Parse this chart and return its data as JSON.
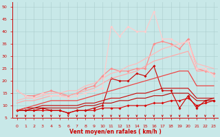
{
  "x": [
    0,
    1,
    2,
    3,
    4,
    5,
    6,
    7,
    8,
    9,
    10,
    11,
    12,
    13,
    14,
    15,
    16,
    17,
    18,
    19,
    20,
    21,
    22,
    23
  ],
  "series": [
    {
      "label": "s1_dark_jagged",
      "color": "#dd0000",
      "lw": 0.8,
      "marker": "D",
      "markersize": 1.8,
      "values": [
        8,
        8,
        8,
        8,
        8,
        8,
        7,
        8,
        8,
        8,
        9,
        9,
        9,
        10,
        10,
        10,
        11,
        11,
        12,
        12,
        13,
        10,
        11,
        12
      ]
    },
    {
      "label": "s2_dark_jagged2",
      "color": "#cc0000",
      "lw": 0.8,
      "marker": "D",
      "markersize": 1.8,
      "values": [
        8,
        8,
        8,
        9,
        8,
        8,
        7,
        8,
        8,
        9,
        10,
        21,
        20,
        20,
        23,
        22,
        26,
        16,
        16,
        9,
        14,
        9,
        12,
        12
      ]
    },
    {
      "label": "s3_dark_linear",
      "color": "#bb0000",
      "lw": 0.8,
      "marker": null,
      "markersize": 0,
      "values": [
        8,
        8,
        9,
        9,
        9,
        9,
        9,
        9,
        10,
        10,
        11,
        11,
        12,
        12,
        13,
        13,
        14,
        14,
        15,
        15,
        15,
        12,
        12,
        13
      ]
    },
    {
      "label": "s4_dark_linear2",
      "color": "#cc0000",
      "lw": 0.8,
      "marker": null,
      "markersize": 0,
      "values": [
        8,
        9,
        9,
        10,
        10,
        10,
        10,
        10,
        11,
        11,
        12,
        13,
        13,
        14,
        15,
        15,
        16,
        17,
        17,
        17,
        17,
        13,
        13,
        13
      ]
    },
    {
      "label": "s5_med_linear",
      "color": "#ee4444",
      "lw": 0.9,
      "marker": null,
      "markersize": 0,
      "values": [
        8,
        9,
        10,
        11,
        12,
        12,
        12,
        12,
        13,
        14,
        15,
        16,
        17,
        18,
        19,
        20,
        21,
        22,
        23,
        24,
        24,
        18,
        18,
        18
      ]
    },
    {
      "label": "s6_light_jagged",
      "color": "#ff8888",
      "lw": 0.9,
      "marker": "D",
      "markersize": 1.8,
      "values": [
        16,
        14,
        14,
        15,
        16,
        15,
        14,
        15,
        17,
        18,
        22,
        25,
        24,
        24,
        25,
        25,
        35,
        36,
        35,
        33,
        37,
        25,
        24,
        23
      ]
    },
    {
      "label": "s7_light_linear",
      "color": "#ffaaaa",
      "lw": 0.9,
      "marker": null,
      "markersize": 0,
      "values": [
        11,
        12,
        12,
        13,
        14,
        14,
        14,
        15,
        16,
        17,
        19,
        21,
        22,
        23,
        24,
        26,
        28,
        29,
        30,
        31,
        32,
        24,
        24,
        23
      ]
    },
    {
      "label": "s8_light_linear2",
      "color": "#ffbbbb",
      "lw": 0.9,
      "marker": null,
      "markersize": 0,
      "values": [
        12,
        13,
        13,
        14,
        15,
        15,
        16,
        16,
        18,
        19,
        21,
        23,
        24,
        26,
        27,
        29,
        31,
        33,
        34,
        35,
        36,
        27,
        26,
        25
      ]
    },
    {
      "label": "s9_lightest_jagged",
      "color": "#ffcccc",
      "lw": 0.9,
      "marker": "D",
      "markersize": 1.8,
      "values": [
        16,
        14,
        13,
        15,
        14,
        14,
        13,
        14,
        15,
        16,
        17,
        42,
        38,
        42,
        40,
        40,
        48,
        37,
        37,
        35,
        36,
        25,
        25,
        22
      ]
    }
  ],
  "xlabel": "Vent moyen/en rafales ( km/h )",
  "xlim": [
    -0.5,
    23.5
  ],
  "ylim": [
    5,
    52
  ],
  "yticks": [
    5,
    10,
    15,
    20,
    25,
    30,
    35,
    40,
    45,
    50
  ],
  "xticks": [
    0,
    1,
    2,
    3,
    4,
    5,
    6,
    7,
    8,
    9,
    10,
    11,
    12,
    13,
    14,
    15,
    16,
    17,
    18,
    19,
    20,
    21,
    22,
    23
  ],
  "bg_color": "#c8e8e8",
  "grid_color": "#aacccc",
  "text_color": "#cc0000",
  "arrow_color": "#cc0000",
  "figsize": [
    3.2,
    2.0
  ],
  "dpi": 100
}
